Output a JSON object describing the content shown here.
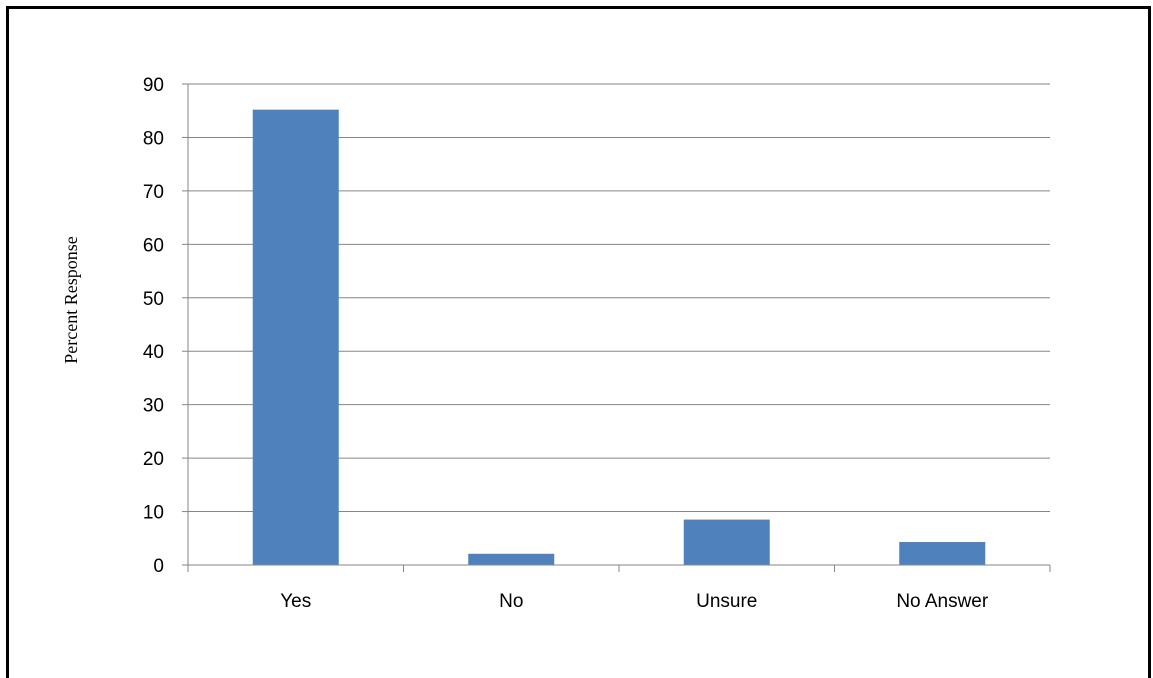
{
  "chart_data": {
    "type": "bar",
    "title": "",
    "xlabel": "",
    "ylabel": "Percent Response",
    "categories": [
      "Yes",
      "No",
      "Unsure",
      "No Answer"
    ],
    "series": [
      {
        "values": [
          85.2,
          2.1,
          8.5,
          4.3
        ]
      }
    ],
    "ylim": [
      0,
      90
    ],
    "yticks": [
      "0",
      "10",
      "20",
      "30",
      "40",
      "50",
      "60",
      "70",
      "80",
      "90"
    ],
    "grid": true,
    "legend": "none",
    "colors": {
      "bar": "#4f81bd",
      "grid": "#868686",
      "axis": "#868686"
    }
  }
}
